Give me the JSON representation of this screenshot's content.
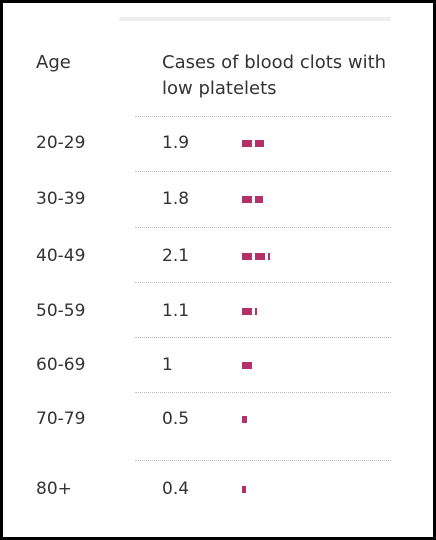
{
  "table": {
    "header": [
      "Age",
      "Cases of blood clots with low platelets"
    ],
    "color": "#b3306c",
    "rows": [
      [
        "20-29",
        1.9
      ],
      [
        "30-39",
        1.8
      ],
      [
        "40-49",
        2.1
      ],
      [
        "50-59",
        1.1
      ],
      [
        "60-69",
        1
      ],
      [
        "70-79",
        0.5
      ],
      [
        "80+",
        0.4
      ]
    ]
  }
}
